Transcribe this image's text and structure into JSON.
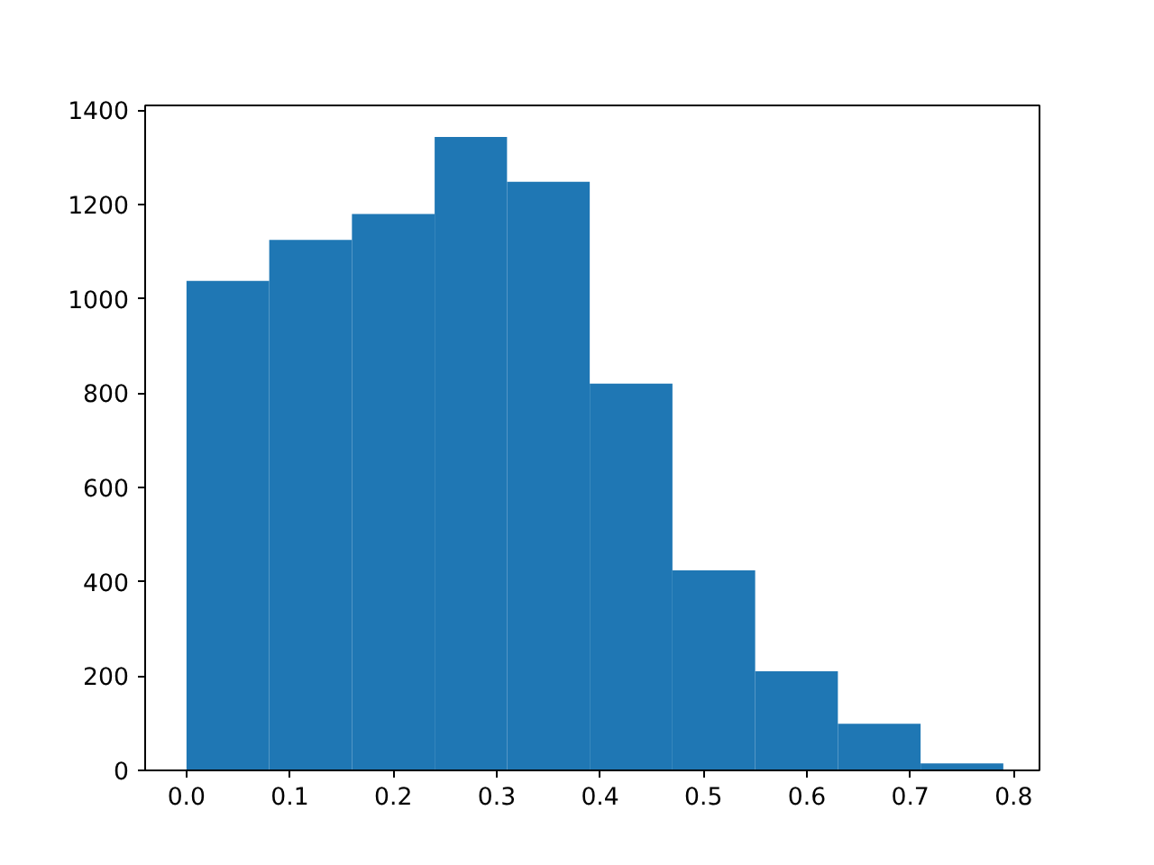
{
  "chart_data": {
    "type": "histogram",
    "color": "#1f77b4",
    "bins": [
      0,
      0.08,
      0.16,
      0.24,
      0.31,
      0.39,
      0.47,
      0.55,
      0.63,
      0.71,
      0.79
    ],
    "values": [
      1038,
      1125,
      1180,
      1343,
      1248,
      820,
      424,
      210,
      99,
      15
    ],
    "xlim": [
      -0.04,
      0.825
    ],
    "ylim": [
      0,
      1410
    ],
    "xticks": [
      {
        "value": 0,
        "label": "0.0"
      },
      0.1,
      0.2,
      0.3,
      0.4,
      0.5,
      0.6,
      0.7,
      0.8
    ],
    "yticks": [
      0,
      200,
      400,
      600,
      800,
      1000,
      1200,
      1400
    ],
    "grid": false
  }
}
